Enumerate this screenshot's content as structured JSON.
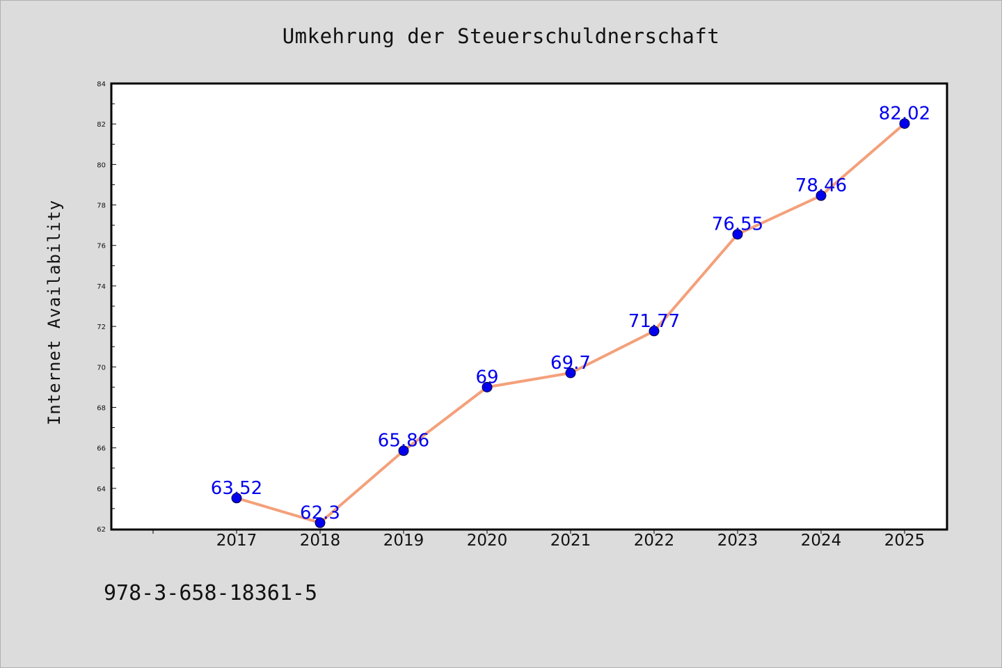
{
  "chart_data": {
    "type": "line",
    "title": "Umkehrung der Steuerschuldnerschaft",
    "xlabel": "",
    "ylabel": "Internet Availability",
    "categories": [
      "2017",
      "2018",
      "2019",
      "2020",
      "2021",
      "2022",
      "2023",
      "2024",
      "2025"
    ],
    "series": [
      {
        "values": [
          63.52,
          62.3,
          65.86,
          69,
          69.7,
          71.77,
          76.55,
          78.46,
          82.02
        ],
        "data_labels": [
          "63.52",
          "62.3",
          "65.86",
          "69",
          "69.7",
          "71.77",
          "76.55",
          "78.46",
          "82.02"
        ]
      }
    ],
    "ylim": [
      62,
      84
    ],
    "yticks": [
      "62",
      "64",
      "66",
      "68",
      "70",
      "72",
      "74",
      "76",
      "78",
      "80",
      "82",
      "84"
    ],
    "grid": false,
    "legend": "none"
  },
  "footer": {
    "code": "978-3-658-18361-5"
  },
  "colors": {
    "background": "#dcdcdc",
    "plot_background": "#ffffff",
    "line": "#f4a07a",
    "marker": "#0000ee",
    "data_label": "#0000ee"
  }
}
